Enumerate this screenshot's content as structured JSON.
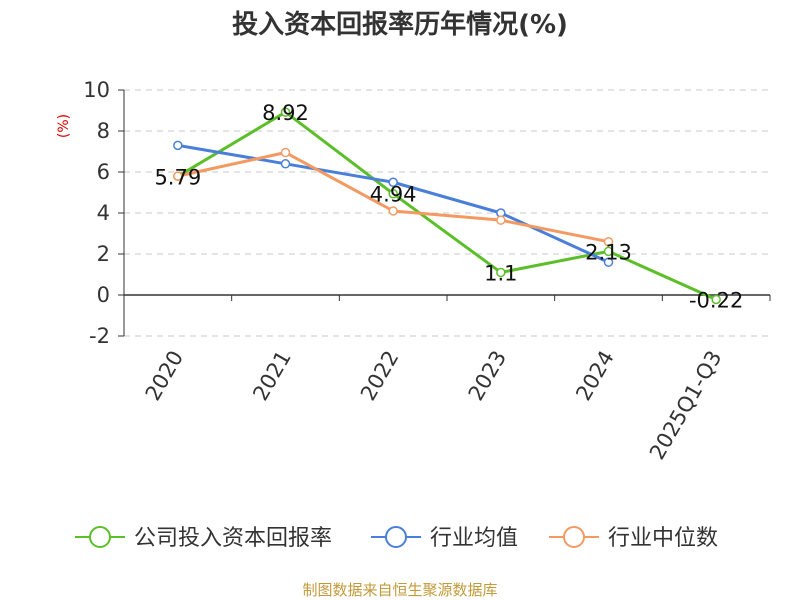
{
  "chart_data": {
    "type": "line",
    "title": "投入资本回报率历年情况(%)",
    "xlabel": "",
    "ylabel": "(%)",
    "categories": [
      "2020",
      "2021",
      "2022",
      "2023",
      "2024",
      "2025Q1-Q3"
    ],
    "ylim": [
      -2,
      10
    ],
    "yticks": [
      -2,
      0,
      2,
      4,
      6,
      8,
      10
    ],
    "grid": true,
    "legend_position": "bottom",
    "series": [
      {
        "name": "公司投入资本回报率",
        "color": "#5cbf2a",
        "values": [
          5.79,
          8.92,
          4.94,
          1.1,
          2.13,
          -0.22
        ],
        "labels": [
          "5.79",
          "8.92",
          "4.94",
          "1.1",
          "2.13",
          "-0.22"
        ]
      },
      {
        "name": "行业均值",
        "color": "#4a7fd9",
        "values": [
          7.3,
          6.4,
          5.5,
          4.0,
          1.6,
          null
        ]
      },
      {
        "name": "行业中位数",
        "color": "#f39a63",
        "values": [
          5.8,
          6.95,
          4.1,
          3.65,
          2.6,
          null
        ]
      }
    ],
    "source": "制图数据来自恒生聚源数据库"
  }
}
